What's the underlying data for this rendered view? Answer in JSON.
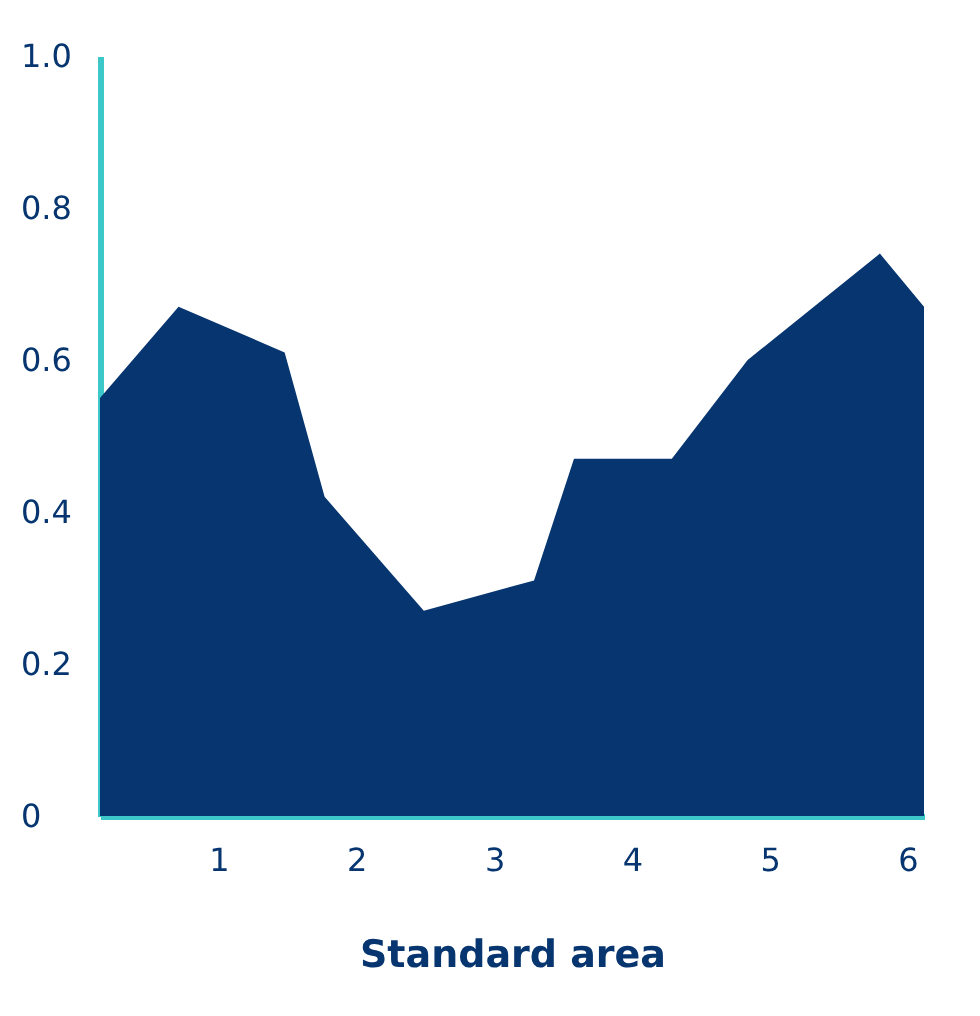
{
  "chart_data": {
    "type": "area",
    "xlabel": "Standard area",
    "x": [
      0.14,
      0.71,
      1.48,
      1.77,
      2.49,
      3.29,
      3.58,
      4.29,
      4.84,
      5.8,
      6.12
    ],
    "series": [
      {
        "color": "#06356f",
        "values": [
          0.55,
          0.67,
          0.61,
          0.42,
          0.27,
          0.31,
          0.47,
          0.47,
          0.6,
          0.74,
          0.67
        ]
      }
    ],
    "xlim": [
      0.14,
      6.12
    ],
    "xticks": [
      1,
      2,
      3,
      4,
      5,
      6
    ],
    "ylim": [
      0,
      1.0
    ],
    "yticks": [
      {
        "value": 0,
        "label": "0"
      },
      0.2,
      0.4,
      0.6,
      0.8,
      {
        "value": 1.0,
        "label": "1.0"
      }
    ],
    "grid": false
  }
}
